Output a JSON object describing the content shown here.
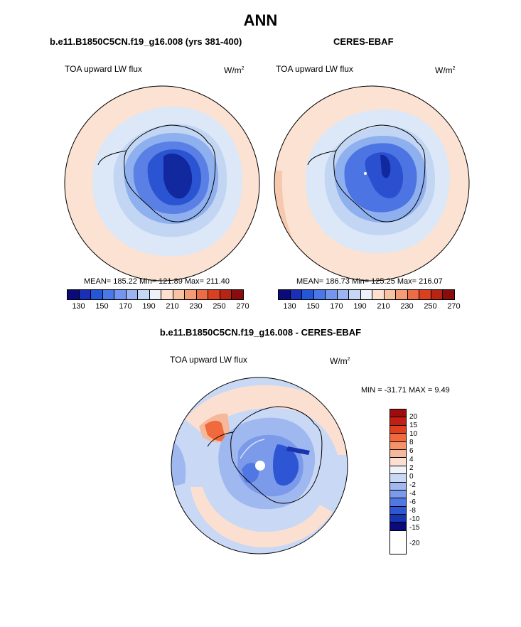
{
  "title": "ANN",
  "panels": {
    "left": {
      "title": "b.e11.B1850C5CN.f19_g16.008 (yrs 381-400)",
      "variable": "TOA upward LW flux",
      "units_base": "W/m",
      "units_exp": "2",
      "stats": "MEAN= 185.22  Min= 121.89  Max= 211.40"
    },
    "right": {
      "title": "CERES-EBAF",
      "variable": "TOA upward LW flux",
      "units_base": "W/m",
      "units_exp": "2",
      "stats": "MEAN= 186.73  Min= 125.25  Max= 216.07"
    },
    "diff": {
      "title": "b.e11.B1850C5CN.f19_g16.008 - CERES-EBAF",
      "variable": "TOA upward LW flux",
      "units_base": "W/m",
      "units_exp": "2",
      "stats": "MIN = -31.71 MAX =   9.49"
    }
  },
  "colorbar_abs": {
    "colors": [
      "#0a0a7a",
      "#1a2fb8",
      "#2456d8",
      "#4a78e8",
      "#7496ee",
      "#9db4f2",
      "#c6d6f5",
      "#eef2f8",
      "#fbe0cf",
      "#f8c2a4",
      "#f39c76",
      "#ec6c45",
      "#d8401f",
      "#b82414",
      "#8a0c0c"
    ],
    "ticks": [
      "130",
      "150",
      "170",
      "190",
      "210",
      "230",
      "250",
      "270"
    ]
  },
  "colorbar_diff": {
    "colors": [
      "#9b0e0e",
      "#c41e14",
      "#e0401e",
      "#f06a3e",
      "#f4926a",
      "#f6b89a",
      "#fbe0d2",
      "#eef2fa",
      "#c9d8f5",
      "#a0b8f0",
      "#7c9aea",
      "#5077e2",
      "#2e56d4",
      "#1834b0",
      "#0a0a7a"
    ],
    "ticks": [
      "20",
      "15",
      "10",
      "8",
      "6",
      "4",
      "2",
      "0",
      "-2",
      "-4",
      "-6",
      "-8",
      "-10",
      "-15",
      "-20"
    ]
  }
}
